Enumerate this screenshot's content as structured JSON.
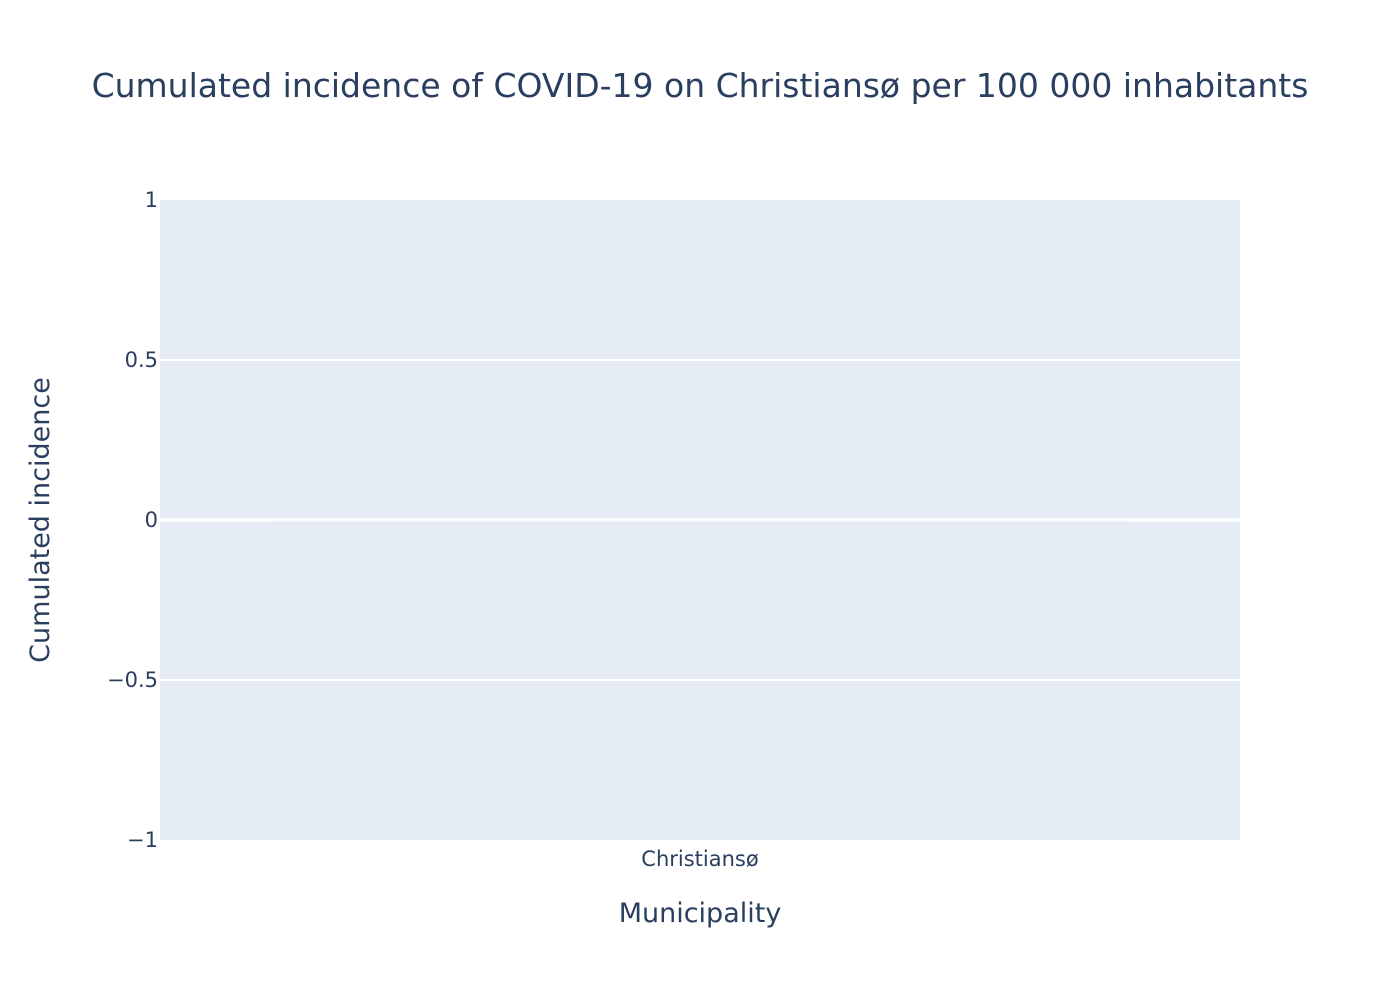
{
  "chart_data": {
    "type": "bar",
    "title": "Cumulated incidence of COVID-19 on Christiansø per 100 000 inhabitants",
    "xlabel": "Municipality",
    "ylabel": "Cumulated incidence",
    "categories": [
      "Christiansø"
    ],
    "values": [
      0
    ],
    "ylim": [
      -1,
      1
    ],
    "yticks": [
      1,
      0.5,
      0,
      -0.5,
      -1
    ],
    "ytick_labels": [
      "1",
      "0.5",
      "0",
      "−0.5",
      "−1"
    ],
    "grid": true,
    "colors": {
      "plot_background": "#e5ecf6",
      "grid": "#ffffff",
      "bar": "#636efa",
      "text": "#2a3f5f"
    }
  }
}
